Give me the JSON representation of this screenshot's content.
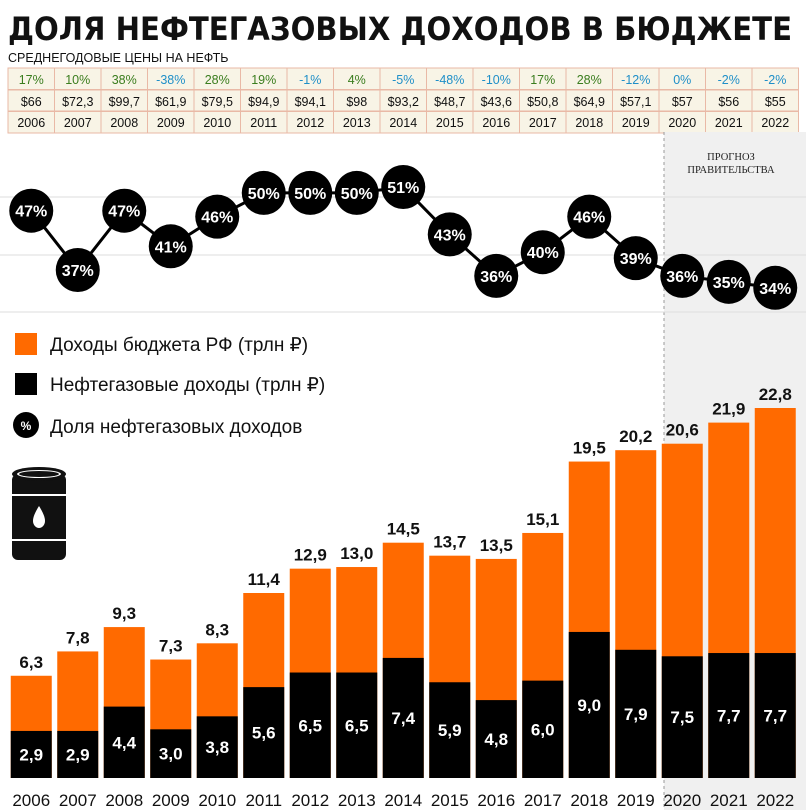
{
  "title": "ДОЛЯ НЕФТЕГАЗОВЫХ ДОХОДОВ В БЮДЖЕТЕ",
  "oil_price_table": {
    "caption": "СРЕДНЕГОДОВЫЕ ЦЕНЫ НА НЕФТЬ",
    "years": [
      "2006",
      "2007",
      "2008",
      "2009",
      "2010",
      "2011",
      "2012",
      "2013",
      "2014",
      "2015",
      "2016",
      "2017",
      "2018",
      "2019",
      "2020",
      "2021",
      "2022"
    ],
    "change": [
      "17%",
      "10%",
      "38%",
      "-38%",
      "28%",
      "19%",
      "-1%",
      "4%",
      "-5%",
      "-48%",
      "-10%",
      "17%",
      "28%",
      "-12%",
      "0%",
      "-2%",
      "-2%"
    ],
    "price": [
      "$66",
      "$72,3",
      "$99,7",
      "$61,9",
      "$79,5",
      "$94,9",
      "$94,1",
      "$98",
      "$93,2",
      "$48,7",
      "$43,6",
      "$50,8",
      "$64,9",
      "$57,1",
      "$57",
      "$56",
      "$55"
    ]
  },
  "forecast_label": [
    "ПРОГНОЗ",
    "ПРАВИТЕЛЬСТВА"
  ],
  "legend": {
    "total": "Доходы бюджета РФ (трлн ₽)",
    "oilgas": "Нефтегазовые доходы (трлн ₽)",
    "share": "Доля нефтегазовых доходов",
    "share_marker": "%"
  },
  "colors": {
    "total": "#ff6a00",
    "oilgas": "#000000",
    "positive_change": "#3a7d1e",
    "negative_change": "#1f8fc8",
    "table_background": "#f8f4e6",
    "table_border": "#e9b9a6"
  },
  "icons": [
    "oil-barrel-icon"
  ],
  "chart_data": [
    {
      "type": "line",
      "x": [
        "2006",
        "2007",
        "2008",
        "2009",
        "2010",
        "2011",
        "2012",
        "2013",
        "2014",
        "2015",
        "2016",
        "2017",
        "2018",
        "2019",
        "2020",
        "2021",
        "2022"
      ],
      "values": [
        47,
        37,
        47,
        41,
        46,
        50,
        50,
        50,
        51,
        43,
        36,
        40,
        46,
        39,
        36,
        35,
        34
      ],
      "value_labels": [
        "47%",
        "37%",
        "47%",
        "41%",
        "46%",
        "50%",
        "50%",
        "50%",
        "51%",
        "43%",
        "36%",
        "40%",
        "46%",
        "39%",
        "36%",
        "35%",
        "34%"
      ],
      "series": [
        {
          "name": "Доля нефтегазовых доходов"
        }
      ],
      "forecast_from": "2020",
      "ylim": [
        30,
        55
      ],
      "grid": true
    },
    {
      "type": "bar",
      "categories": [
        "2006",
        "2007",
        "2008",
        "2009",
        "2010",
        "2011",
        "2012",
        "2013",
        "2014",
        "2015",
        "2016",
        "2017",
        "2018",
        "2019",
        "2020",
        "2021",
        "2022"
      ],
      "series": [
        {
          "name": "Доходы бюджета РФ (трлн ₽)",
          "values": [
            6.3,
            7.8,
            9.3,
            7.3,
            8.3,
            11.4,
            12.9,
            13.0,
            14.5,
            13.7,
            13.5,
            15.1,
            19.5,
            20.2,
            20.6,
            21.9,
            22.8
          ],
          "labels": [
            "6,3",
            "7,8",
            "9,3",
            "7,3",
            "8,3",
            "11,4",
            "12,9",
            "13,0",
            "14,5",
            "13,7",
            "13,5",
            "15,1",
            "19,5",
            "20,2",
            "20,6",
            "21,9",
            "22,8"
          ]
        },
        {
          "name": "Нефтегазовые доходы (трлн ₽)",
          "values": [
            2.9,
            2.9,
            4.4,
            3.0,
            3.8,
            5.6,
            6.5,
            6.5,
            7.4,
            5.9,
            4.8,
            6.0,
            9.0,
            7.9,
            7.5,
            7.7,
            7.7
          ],
          "labels": [
            "2,9",
            "2,9",
            "4,4",
            "3,0",
            "3,8",
            "5,6",
            "6,5",
            "6,5",
            "7,4",
            "5,9",
            "4,8",
            "6,0",
            "9,0",
            "7,9",
            "7,5",
            "7,7",
            "7,7"
          ]
        }
      ],
      "ylim": [
        0,
        25
      ],
      "legend_placement": "top-left"
    }
  ]
}
